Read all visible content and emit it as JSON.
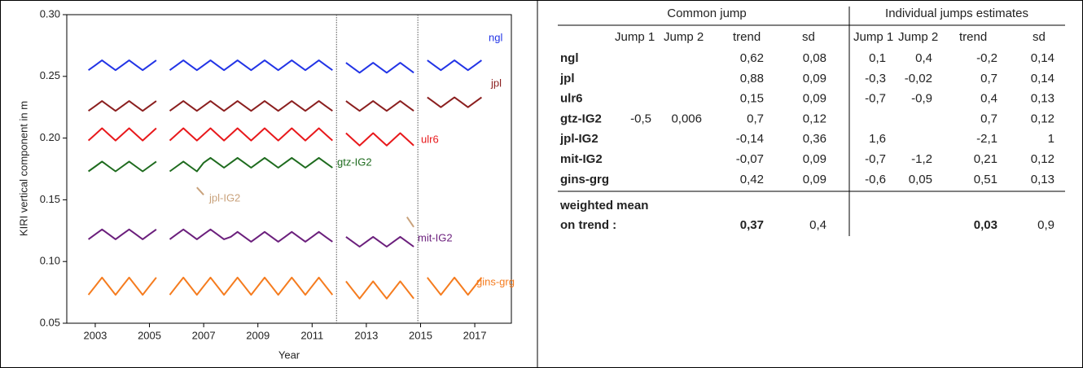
{
  "chart_data": {
    "type": "line",
    "xlabel": "Year",
    "ylabel": "KIRI vertical component in m",
    "xlim": [
      2001.95,
      2018.35
    ],
    "ylim": [
      0.05,
      0.3
    ],
    "xticks": [
      2003,
      2005,
      2007,
      2009,
      2011,
      2013,
      2015,
      2017
    ],
    "yticks": [
      {
        "value": 0.3,
        "label": "0.30"
      },
      {
        "value": 0.25,
        "label": "0.25"
      },
      {
        "value": 0.2,
        "label": "0.20"
      },
      {
        "value": 0.15,
        "label": "0.15"
      },
      {
        "value": 0.1,
        "label": "0.10"
      },
      {
        "value": 0.05,
        "label": "0.05"
      }
    ],
    "vlines": [
      2011.9,
      2014.9
    ],
    "x": [
      2002.75,
      2003,
      2003.25,
      2003.5,
      2003.75,
      2004,
      2004.25,
      2004.5,
      2004.75,
      2005,
      2005.25,
      2005.5,
      2005.75,
      2006,
      2006.25,
      2006.5,
      2006.75,
      2007,
      2007.25,
      2007.5,
      2007.75,
      2008,
      2008.25,
      2008.5,
      2008.75,
      2009,
      2009.25,
      2009.5,
      2009.75,
      2010,
      2010.25,
      2010.5,
      2010.75,
      2011,
      2011.25,
      2011.5,
      2011.75,
      2012,
      2012.25,
      2012.5,
      2012.75,
      2013,
      2013.25,
      2013.5,
      2013.75,
      2014,
      2014.25,
      2014.5,
      2014.75,
      2015,
      2015.25,
      2015.5,
      2015.75,
      2016,
      2016.25,
      2016.5,
      2016.75,
      2017,
      2017.25
    ],
    "series": [
      {
        "name": "ngl",
        "color": "#2234e6",
        "values": [
          0.255,
          0.259,
          0.263,
          0.259,
          0.255,
          0.259,
          0.263,
          0.259,
          0.255,
          0.259,
          0.263,
          null,
          0.255,
          0.259,
          0.263,
          0.259,
          0.255,
          0.259,
          0.263,
          0.259,
          0.255,
          0.259,
          0.263,
          0.259,
          0.255,
          0.259,
          0.263,
          0.259,
          0.255,
          0.259,
          0.263,
          0.259,
          0.255,
          0.259,
          0.263,
          0.259,
          0.255,
          null,
          0.261,
          0.257,
          0.253,
          0.257,
          0.261,
          0.257,
          0.253,
          0.257,
          0.261,
          0.257,
          0.253,
          null,
          0.263,
          0.259,
          0.255,
          0.259,
          0.263,
          0.259,
          0.255,
          0.259,
          0.263
        ]
      },
      {
        "name": "jpl",
        "color": "#8b1f1f",
        "values": [
          0.222,
          0.226,
          0.23,
          0.226,
          0.222,
          0.226,
          0.23,
          0.226,
          0.222,
          0.226,
          0.23,
          null,
          0.222,
          0.226,
          0.23,
          0.226,
          0.222,
          0.226,
          0.23,
          0.226,
          0.222,
          0.226,
          0.23,
          0.226,
          0.222,
          0.226,
          0.23,
          0.226,
          0.222,
          0.226,
          0.23,
          0.226,
          0.222,
          0.226,
          0.23,
          0.226,
          0.222,
          null,
          0.23,
          0.226,
          0.222,
          0.226,
          0.23,
          0.226,
          0.222,
          0.226,
          0.23,
          0.226,
          0.222,
          null,
          0.233,
          0.229,
          0.225,
          0.229,
          0.233,
          0.229,
          0.225,
          0.229,
          0.233
        ]
      },
      {
        "name": "ulr6",
        "color": "#e8191c",
        "values": [
          0.198,
          0.203,
          0.208,
          0.203,
          0.198,
          0.203,
          0.208,
          0.203,
          0.198,
          0.203,
          0.208,
          null,
          0.198,
          0.203,
          0.208,
          0.203,
          0.198,
          0.203,
          0.208,
          0.203,
          0.198,
          0.203,
          0.208,
          0.203,
          0.198,
          0.203,
          0.208,
          0.203,
          0.198,
          0.203,
          0.208,
          0.203,
          0.198,
          0.203,
          0.208,
          0.203,
          0.198,
          null,
          0.204,
          0.199,
          0.194,
          0.199,
          0.204,
          0.199,
          0.194,
          0.199,
          0.204,
          0.199,
          0.194,
          null,
          null,
          null,
          null,
          null,
          null,
          null,
          null,
          null,
          null
        ]
      },
      {
        "name": "gtz-IG2",
        "color": "#1e6b1e",
        "values": [
          0.173,
          0.177,
          0.181,
          0.177,
          0.173,
          0.177,
          0.181,
          0.177,
          0.173,
          0.177,
          0.181,
          null,
          0.173,
          0.177,
          0.181,
          0.177,
          0.173,
          0.18,
          0.184,
          0.18,
          0.176,
          0.18,
          0.184,
          0.18,
          0.176,
          0.18,
          0.184,
          0.18,
          0.176,
          0.18,
          0.184,
          0.18,
          0.176,
          0.18,
          0.184,
          0.18,
          0.176,
          null,
          null,
          null,
          null,
          null,
          null,
          null,
          null,
          null,
          null,
          null,
          null,
          null,
          null,
          null,
          null,
          null,
          null,
          null,
          null,
          null,
          null
        ]
      },
      {
        "name": "jpl-IG2",
        "color": "#c9a27c",
        "values": [
          null,
          null,
          null,
          null,
          null,
          null,
          null,
          null,
          null,
          null,
          null,
          null,
          null,
          null,
          null,
          null,
          0.16,
          0.154,
          null,
          null,
          null,
          null,
          null,
          null,
          null,
          null,
          null,
          null,
          null,
          null,
          null,
          null,
          null,
          null,
          null,
          null,
          null,
          null,
          null,
          null,
          null,
          null,
          null,
          null,
          null,
          null,
          null,
          0.136,
          0.128,
          null,
          null,
          null,
          null,
          null,
          null,
          null,
          null,
          null,
          null
        ]
      },
      {
        "name": "mit-IG2",
        "color": "#6b1f7c",
        "values": [
          0.118,
          0.122,
          0.126,
          0.122,
          0.118,
          0.122,
          0.126,
          0.122,
          0.118,
          0.122,
          0.126,
          null,
          0.118,
          0.122,
          0.126,
          0.122,
          0.118,
          0.122,
          0.126,
          0.122,
          0.118,
          0.12,
          0.124,
          0.12,
          0.116,
          0.12,
          0.124,
          0.12,
          0.116,
          0.12,
          0.124,
          0.12,
          0.116,
          0.12,
          0.124,
          0.12,
          0.116,
          null,
          0.12,
          0.116,
          0.112,
          0.116,
          0.12,
          0.116,
          0.112,
          0.116,
          0.12,
          0.116,
          0.112,
          null,
          null,
          null,
          null,
          null,
          null,
          null,
          null,
          null,
          null
        ]
      },
      {
        "name": "gins-grg",
        "color": "#f57c1f",
        "values": [
          0.073,
          0.08,
          0.087,
          0.08,
          0.073,
          0.08,
          0.087,
          0.08,
          0.073,
          0.08,
          0.087,
          null,
          0.073,
          0.08,
          0.087,
          0.08,
          0.073,
          0.08,
          0.087,
          0.08,
          0.073,
          0.08,
          0.087,
          0.08,
          0.073,
          0.08,
          0.087,
          0.08,
          0.073,
          0.08,
          0.087,
          0.08,
          0.073,
          0.08,
          0.087,
          0.08,
          0.073,
          null,
          0.084,
          0.077,
          0.07,
          0.077,
          0.084,
          0.077,
          0.07,
          0.077,
          0.084,
          0.077,
          0.07,
          null,
          0.087,
          0.08,
          0.073,
          0.08,
          0.087,
          0.08,
          0.073,
          0.08,
          0.087
        ]
      }
    ]
  },
  "table": {
    "group_headers": [
      "Common jump",
      "Individual jumps estimates"
    ],
    "columns": [
      "Jump 1",
      "Jump 2",
      "trend",
      "sd",
      "Jump 1",
      "Jump 2",
      "trend",
      "sd"
    ],
    "rows": [
      {
        "name": "ngl",
        "cells": [
          null,
          null,
          "0,62",
          "0,08",
          "0,1",
          "0,4",
          "-0,2",
          "0,14"
        ]
      },
      {
        "name": "jpl",
        "cells": [
          null,
          null,
          "0,88",
          "0,09",
          "-0,3",
          "-0,02",
          "0,7",
          "0,14"
        ]
      },
      {
        "name": "ulr6",
        "cells": [
          null,
          null,
          "0,15",
          "0,09",
          "-0,7",
          "-0,9",
          "0,4",
          "0,13"
        ]
      },
      {
        "name": "gtz-IG2",
        "cells": [
          "-0,5",
          "0,006",
          "0,7",
          "0,12",
          null,
          null,
          "0,7",
          "0,12"
        ]
      },
      {
        "name": "jpl-IG2",
        "cells": [
          null,
          null,
          "-0,14",
          "0,36",
          "1,6",
          null,
          "-2,1",
          "1"
        ]
      },
      {
        "name": "mit-IG2",
        "cells": [
          null,
          null,
          "-0,07",
          "0,09",
          "-0,7",
          "-1,2",
          "0,21",
          "0,12"
        ]
      },
      {
        "name": "gins-grg",
        "cells": [
          null,
          null,
          "0,42",
          "0,09",
          "-0,6",
          "0,05",
          "0,51",
          "0,13"
        ]
      }
    ],
    "summary": {
      "labels": [
        "weighted mean",
        "on trend :"
      ],
      "values": [
        "0,37",
        "0,4",
        "0,03",
        "0,9"
      ]
    }
  }
}
